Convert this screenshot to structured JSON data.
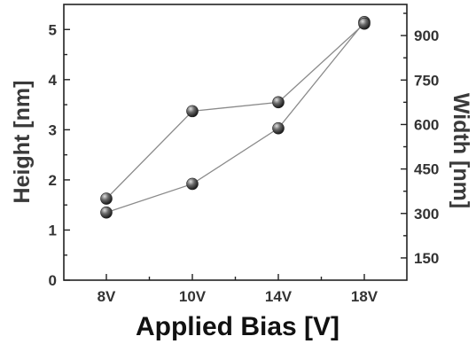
{
  "chart_data": {
    "type": "line",
    "categories": [
      "8V",
      "10V",
      "14V",
      "18V"
    ],
    "xlabel": "Applied Bias [V]",
    "ylabel_left": "Height [nm]",
    "ylabel_right": "Width [nm]",
    "ylim_left": [
      0,
      5.5
    ],
    "yticks_left": [
      0,
      1,
      2,
      3,
      4,
      5
    ],
    "ylim_right": [
      75,
      1005
    ],
    "yticks_right": [
      150,
      300,
      450,
      600,
      750,
      900
    ],
    "grid": false,
    "series": [
      {
        "axis": "left",
        "values": [
          1.35,
          1.92,
          3.03,
          5.15
        ],
        "color": "#555555"
      },
      {
        "axis": "right",
        "values": [
          350,
          645,
          675,
          940
        ],
        "color": "#555555"
      }
    ]
  }
}
